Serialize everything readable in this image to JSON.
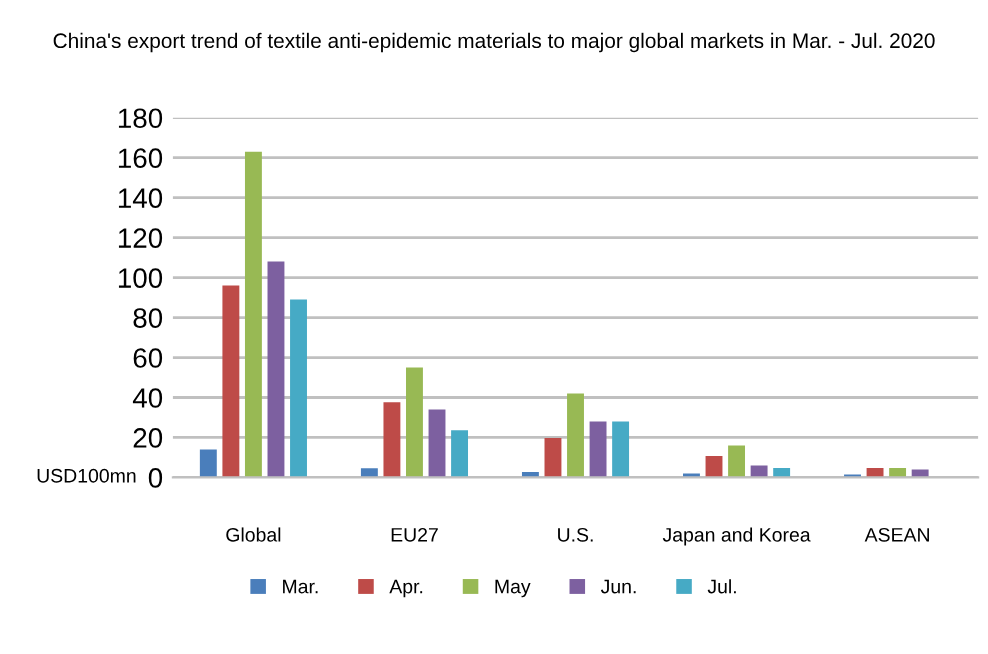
{
  "chart_data": {
    "type": "bar",
    "title": "China's export trend of textile anti-epidemic materials to major global markets in Mar. - Jul. 2020",
    "ylabel": "USD100mn",
    "categories": [
      "Global",
      "EU27",
      "U.S.",
      "Japan and Korea",
      "ASEAN"
    ],
    "series": [
      {
        "name": "Mar.",
        "color": "#4a7ebb",
        "values": [
          14,
          4.6,
          2.7,
          2,
          1.5
        ]
      },
      {
        "name": "Apr.",
        "color": "#be4b48",
        "values": [
          96,
          37.6,
          19.7,
          10.7,
          4.7
        ]
      },
      {
        "name": "May",
        "color": "#98b954",
        "values": [
          163,
          55,
          42,
          16,
          4.7
        ]
      },
      {
        "name": "Jun.",
        "color": "#7d60a0",
        "values": [
          108,
          34,
          28,
          6,
          4
        ]
      },
      {
        "name": "Jul.",
        "color": "#46aac5",
        "values": [
          89,
          23.6,
          28,
          4.7,
          null
        ]
      }
    ],
    "ylim": [
      0,
      180
    ],
    "yticks": [
      0,
      20,
      40,
      60,
      80,
      100,
      120,
      140,
      160,
      180
    ],
    "grid": "y",
    "legend": "bottom"
  }
}
